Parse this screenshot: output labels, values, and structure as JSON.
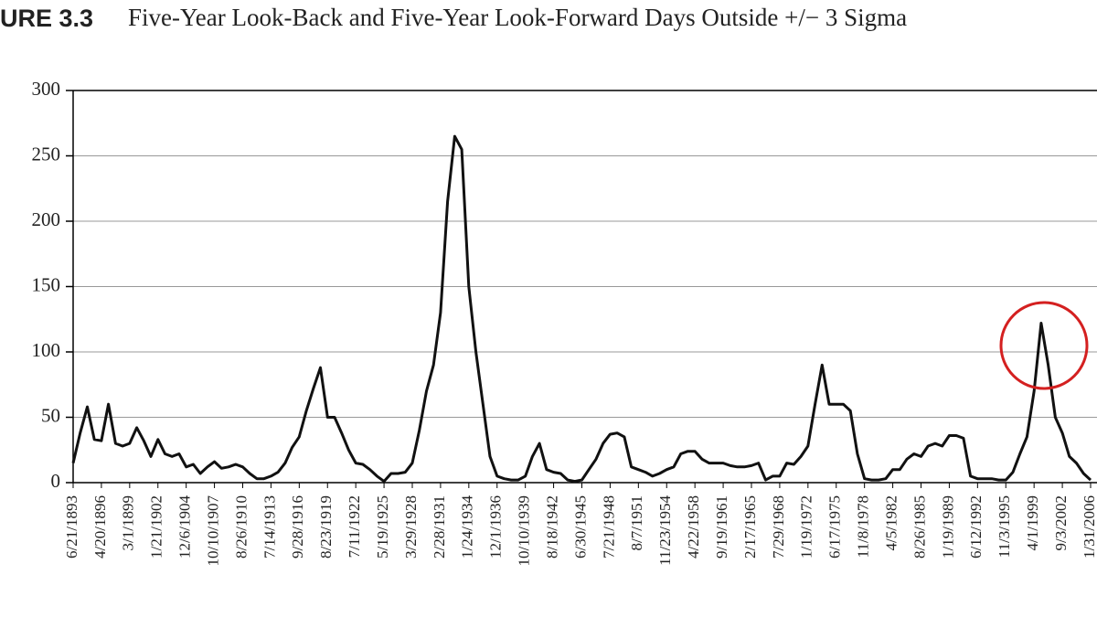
{
  "figure_label": "URE 3.3",
  "chart_data": {
    "type": "line",
    "title": "Five-Year Look-Back and Five-Year Look-Forward Days Outside +/− 3 Sigma",
    "categories": [
      "6/21/1893",
      null,
      null,
      null,
      "4/20/1896",
      null,
      null,
      null,
      "3/1/1899",
      null,
      null,
      null,
      "1/21/1902",
      null,
      null,
      null,
      "12/6/1904",
      null,
      null,
      null,
      "10/10/1907",
      null,
      null,
      null,
      "8/26/1910",
      null,
      null,
      null,
      "7/14/1913",
      null,
      null,
      null,
      "9/28/1916",
      null,
      null,
      null,
      "8/23/1919",
      null,
      null,
      null,
      "7/11/1922",
      null,
      null,
      null,
      "5/19/1925",
      null,
      null,
      null,
      "3/29/1928",
      null,
      null,
      null,
      "2/28/1931",
      null,
      null,
      null,
      "1/24/1934",
      null,
      null,
      null,
      "12/1/1936",
      null,
      null,
      null,
      "10/10/1939",
      null,
      null,
      null,
      "8/18/1942",
      null,
      null,
      null,
      "6/30/1945",
      null,
      null,
      null,
      "7/21/1948",
      null,
      null,
      null,
      "8/7/1951",
      null,
      null,
      null,
      "11/23/1954",
      null,
      null,
      null,
      "4/22/1958",
      null,
      null,
      null,
      "9/19/1961",
      null,
      null,
      null,
      "2/17/1965",
      null,
      null,
      null,
      "7/29/1968",
      null,
      null,
      null,
      "1/19/1972",
      null,
      null,
      null,
      "6/17/1975",
      null,
      null,
      null,
      "11/8/1978",
      null,
      null,
      null,
      "4/5/1982",
      null,
      null,
      null,
      "8/26/1985",
      null,
      null,
      null,
      "1/19/1989",
      null,
      null,
      null,
      "6/12/1992",
      null,
      null,
      null,
      "11/3/1995",
      null,
      null,
      null,
      "4/1/1999",
      null,
      null,
      null,
      "9/3/2002",
      null,
      null,
      null,
      "1/31/2006"
    ],
    "values": [
      15,
      38,
      58,
      33,
      32,
      60,
      30,
      28,
      30,
      42,
      32,
      20,
      33,
      22,
      20,
      22,
      12,
      14,
      7,
      12,
      16,
      11,
      12,
      14,
      12,
      7,
      3,
      3,
      5,
      8,
      15,
      27,
      35,
      55,
      72,
      88,
      50,
      50,
      38,
      25,
      15,
      14,
      10,
      5,
      1,
      7,
      7,
      8,
      15,
      40,
      70,
      90,
      130,
      215,
      265,
      255,
      150,
      100,
      60,
      20,
      5,
      3,
      2,
      2,
      5,
      20,
      30,
      10,
      8,
      7,
      2,
      1,
      2,
      10,
      18,
      30,
      37,
      38,
      35,
      12,
      10,
      8,
      5,
      7,
      10,
      12,
      22,
      24,
      24,
      18,
      15,
      15,
      15,
      13,
      12,
      12,
      13,
      15,
      2,
      5,
      5,
      15,
      14,
      20,
      28,
      60,
      90,
      60,
      60,
      60,
      55,
      22,
      3,
      2,
      2,
      3,
      10,
      10,
      18,
      22,
      20,
      28,
      30,
      28,
      36,
      36,
      34,
      5,
      3,
      3,
      3,
      2,
      2,
      8,
      22,
      35,
      70,
      122,
      90,
      50,
      38,
      20,
      15,
      7,
      2
    ],
    "color": "#111111",
    "ylim": [
      0,
      300
    ],
    "yticks": [
      0,
      50,
      100,
      150,
      200,
      250,
      300
    ],
    "grid": true
  }
}
